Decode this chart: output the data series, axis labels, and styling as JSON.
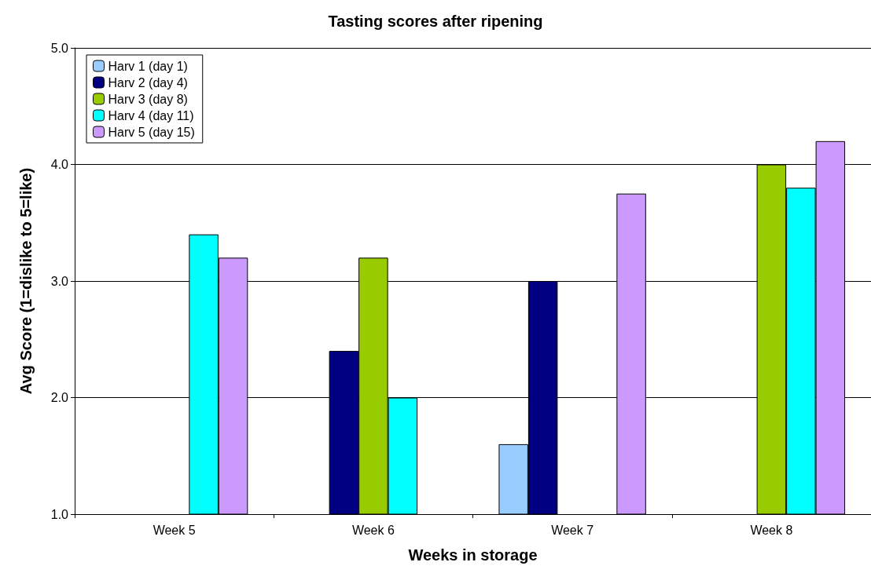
{
  "chart_data": {
    "type": "bar",
    "title": "Tasting scores after ripening",
    "xlabel": "Weeks in storage",
    "ylabel": "Avg Score (1=dislike to 5=like)",
    "categories": [
      "Week 5",
      "Week 6",
      "Week 7",
      "Week 8"
    ],
    "series": [
      {
        "name": "Harv 1 (day 1)",
        "color": "#99ccff",
        "values": [
          null,
          null,
          1.6,
          null
        ]
      },
      {
        "name": "Harv 2 (day 4)",
        "color": "#000080",
        "values": [
          null,
          2.4,
          3.0,
          null
        ]
      },
      {
        "name": "Harv 3 (day 8)",
        "color": "#99cc00",
        "values": [
          null,
          3.2,
          null,
          4.0
        ]
      },
      {
        "name": "Harv 4 (day 11)",
        "color": "#00ffff",
        "values": [
          3.4,
          2.0,
          null,
          3.8
        ]
      },
      {
        "name": "Harv 5 (day 15)",
        "color": "#cc99ff",
        "values": [
          3.2,
          null,
          3.75,
          4.2
        ]
      }
    ],
    "ylim": [
      1,
      5
    ],
    "yticks": [
      {
        "value": 1,
        "label": "1.0"
      },
      {
        "value": 2,
        "label": "2.0"
      },
      {
        "value": 3,
        "label": "3.0"
      },
      {
        "value": 4,
        "label": "4.0"
      },
      {
        "value": 5,
        "label": "5.0"
      }
    ],
    "grid": "y",
    "legend": "top left"
  }
}
